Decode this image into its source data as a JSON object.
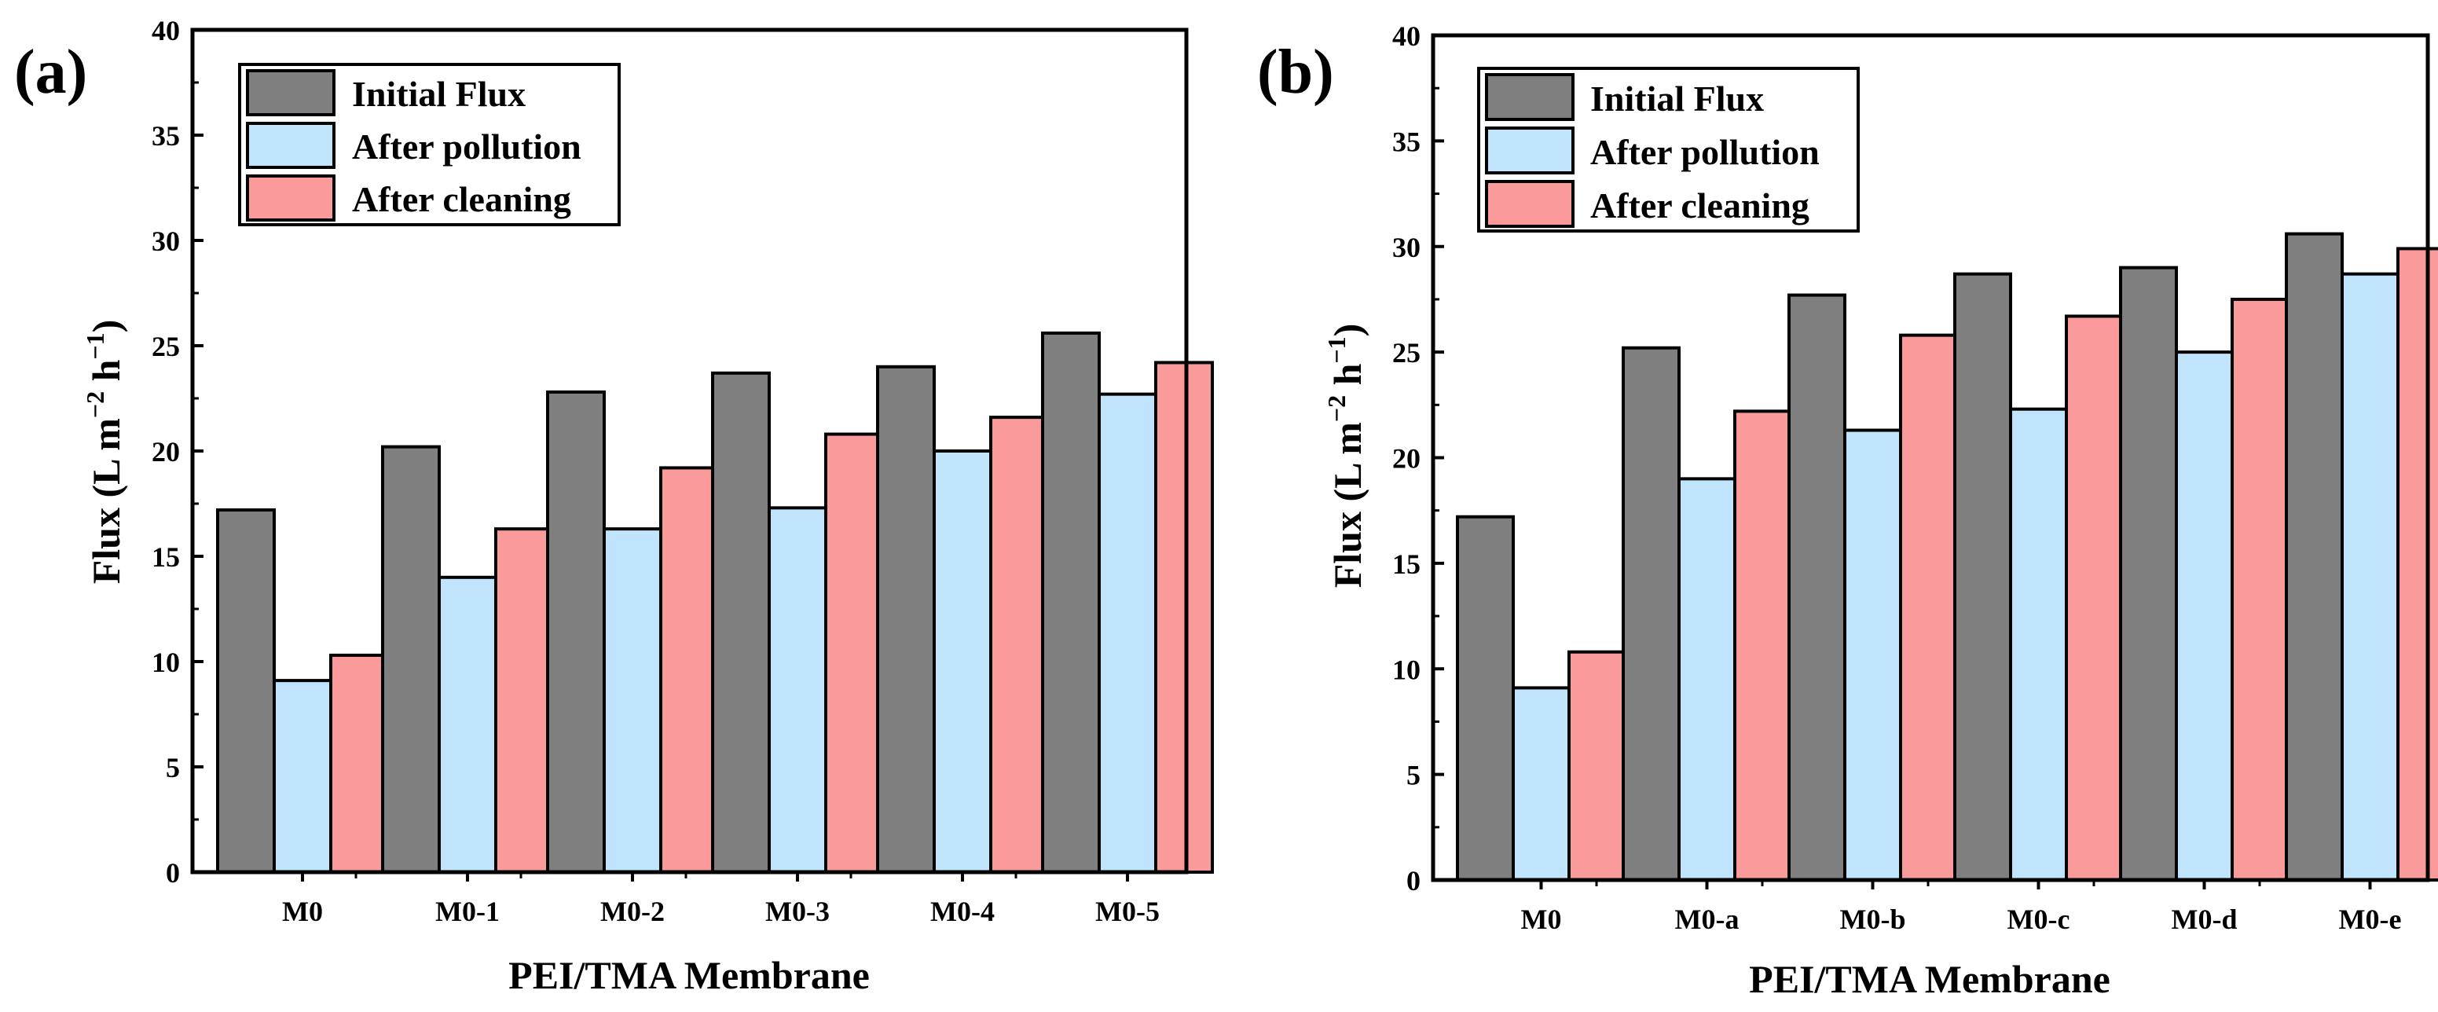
{
  "chart_data": [
    {
      "type": "bar",
      "panel_label": "(a)",
      "categories": [
        "M0",
        "M0-1",
        "M0-2",
        "M0-3",
        "M0-4",
        "M0-5"
      ],
      "series": [
        {
          "name": "Initial Flux",
          "color": "#7f7f7f",
          "values": [
            17.2,
            20.2,
            22.8,
            23.7,
            24.0,
            25.6
          ]
        },
        {
          "name": "After pollution",
          "color": "#bfe4fb",
          "values": [
            9.1,
            14.0,
            16.3,
            17.3,
            20.0,
            22.7
          ]
        },
        {
          "name": "After cleaning",
          "color": "#fb9a9a",
          "values": [
            10.3,
            16.3,
            19.2,
            20.8,
            21.6,
            24.2
          ]
        }
      ],
      "xlabel": "PEI/TMA Membrane",
      "ylabel_main": "Flux (L m",
      "ylabel_sup1": "−2",
      "ylabel_mid": " h",
      "ylabel_sup2": "−1",
      "ylabel_end": ")",
      "ylim": [
        0,
        40
      ],
      "yticks": [
        0,
        5,
        10,
        15,
        20,
        25,
        30,
        35,
        40
      ],
      "legend": "top-left"
    },
    {
      "type": "bar",
      "panel_label": "(b)",
      "categories": [
        "M0",
        "M0-a",
        "M0-b",
        "M0-c",
        "M0-d",
        "M0-e"
      ],
      "series": [
        {
          "name": "Initial Flux",
          "color": "#7f7f7f",
          "values": [
            17.2,
            25.2,
            27.7,
            28.7,
            29.0,
            30.6
          ]
        },
        {
          "name": "After pollution",
          "color": "#bfe4fb",
          "values": [
            9.1,
            19.0,
            21.3,
            22.3,
            25.0,
            28.7
          ]
        },
        {
          "name": "After cleaning",
          "color": "#fb9a9a",
          "values": [
            10.8,
            22.2,
            25.8,
            26.7,
            27.5,
            29.9
          ]
        }
      ],
      "xlabel": "PEI/TMA Membrane",
      "ylabel_main": "Flux (L m",
      "ylabel_sup1": "−2",
      "ylabel_mid": " h",
      "ylabel_sup2": "−1",
      "ylabel_end": ")",
      "ylim": [
        0,
        40
      ],
      "yticks": [
        0,
        5,
        10,
        15,
        20,
        25,
        30,
        35,
        40
      ],
      "legend": "top-left"
    }
  ]
}
